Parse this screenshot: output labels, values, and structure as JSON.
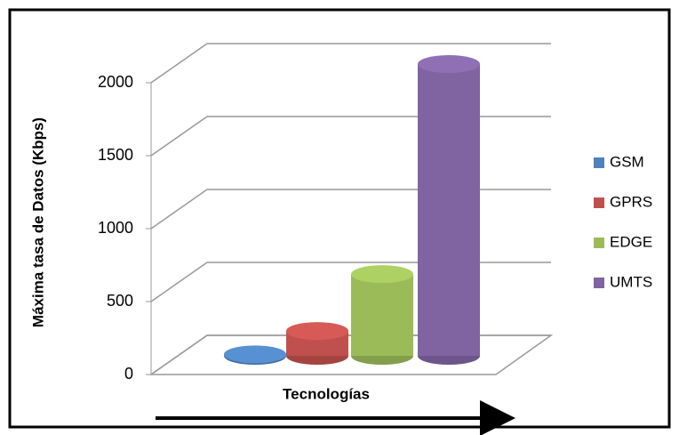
{
  "chart_data": {
    "type": "bar",
    "categories": [
      null
    ],
    "y_label": "Máxima tasa de Datos (Kbps)",
    "x_label": "Tecnologías",
    "series": [
      {
        "name": "GSM",
        "color": "#4f81bd",
        "values": [
          10
        ]
      },
      {
        "name": "GPRS",
        "color": "#c0504d",
        "values": [
          170
        ]
      },
      {
        "name": "EDGE",
        "color": "#9bbb59",
        "values": [
          560
        ]
      },
      {
        "name": "UMTS",
        "color": "#8064a2",
        "values": [
          2000
        ]
      }
    ],
    "ylim": [
      0,
      2000
    ],
    "yticks": [
      0,
      500,
      1000,
      1500,
      2000
    ],
    "grid": true,
    "legend": "right"
  }
}
